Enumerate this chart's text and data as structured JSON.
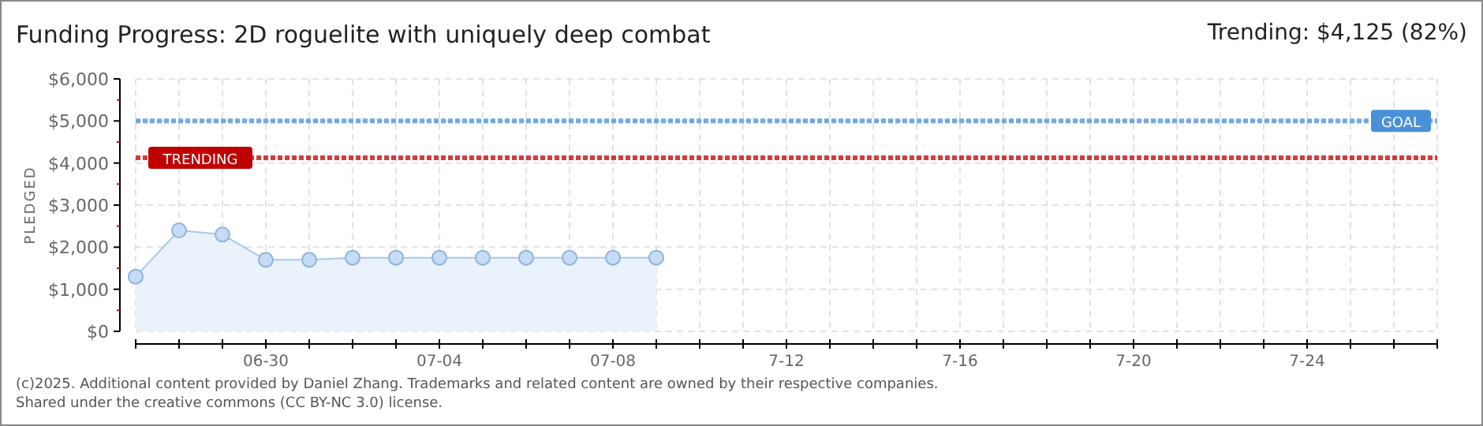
{
  "chart_data": {
    "type": "area",
    "title": "Funding Progress: 2D roguelite with uniquely deep combat",
    "subtitle": "Trending:  $4,125 (82%)",
    "ylabel": "PLEDGED",
    "x": [
      "--06-27",
      "--06-28",
      "--06-29",
      "--06-30",
      "--07-01",
      "--07-02",
      "--07-03",
      "--07-04",
      "--07-05",
      "--07-06",
      "--07-07",
      "--07-08",
      "--07-09"
    ],
    "series": [
      {
        "color": "#a8c8ec",
        "values": [
          1300,
          2400,
          2300,
          1700,
          1700,
          1750,
          1750,
          1750,
          1750,
          1750,
          1750,
          1750,
          1750
        ]
      }
    ],
    "marker": "circle",
    "grid": true,
    "xlim": [
      "--06-27",
      "--07-27"
    ],
    "xticks": [
      {
        "value": "--06-27",
        "label": null
      },
      {
        "value": "--06-28",
        "label": null
      },
      {
        "value": "--06-29",
        "label": null
      },
      {
        "value": "--06-30",
        "label": "06-30"
      },
      {
        "value": "--07-01",
        "label": null
      },
      {
        "value": "--07-02",
        "label": null
      },
      {
        "value": "--07-03",
        "label": null
      },
      {
        "value": "--07-04",
        "label": "07-04"
      },
      {
        "value": "--07-05",
        "label": null
      },
      {
        "value": "--07-06",
        "label": null
      },
      {
        "value": "--07-07",
        "label": null
      },
      {
        "value": "--07-08",
        "label": "07-08"
      },
      {
        "value": "--07-09",
        "label": null
      },
      {
        "value": "--07-10",
        "label": null
      },
      {
        "value": "--07-11",
        "label": null
      },
      {
        "value": "--07-12",
        "label": "7-12"
      },
      {
        "value": "--07-13",
        "label": null
      },
      {
        "value": "--07-14",
        "label": null
      },
      {
        "value": "--07-15",
        "label": null
      },
      {
        "value": "--07-16",
        "label": "7-16"
      },
      {
        "value": "--07-17",
        "label": null
      },
      {
        "value": "--07-18",
        "label": null
      },
      {
        "value": "--07-19",
        "label": null
      },
      {
        "value": "--07-20",
        "label": "7-20"
      },
      {
        "value": "--07-21",
        "label": null
      },
      {
        "value": "--07-22",
        "label": null
      },
      {
        "value": "--07-23",
        "label": null
      },
      {
        "value": "--07-24",
        "label": "7-24"
      },
      {
        "value": "--07-25",
        "label": null
      },
      {
        "value": "--07-26",
        "label": null
      },
      {
        "value": "--07-27",
        "label": null
      }
    ],
    "ylim": [
      0,
      6000
    ],
    "yticks": [
      {
        "value": 0,
        "label": "$0"
      },
      {
        "value": 500,
        "label": null
      },
      {
        "value": 1000,
        "label": "$1,000"
      },
      {
        "value": 1500,
        "label": null
      },
      {
        "value": 2000,
        "label": "$2,000"
      },
      {
        "value": 2500,
        "label": null
      },
      {
        "value": 3000,
        "label": "$3,000"
      },
      {
        "value": 3500,
        "label": null
      },
      {
        "value": 4000,
        "label": "$4,000"
      },
      {
        "value": 4500,
        "label": null
      },
      {
        "value": 5000,
        "label": "$5,000"
      },
      {
        "value": 5500,
        "label": null
      },
      {
        "value": 6000,
        "label": "$6,000"
      }
    ],
    "ref_lines": [
      {
        "axis": "y",
        "value": 5000,
        "label": "GOAL",
        "color": "#4a90d9",
        "line_style": "dotted"
      },
      {
        "axis": "y",
        "value": 4125,
        "label": "TRENDING",
        "color": "#c00000",
        "line_style": "dotted"
      }
    ],
    "annotations": [
      "(c)2025. Additional content provided by Daniel Zhang. Trademarks and related content are owned by their respective companies.",
      "Shared under the creative commons (CC BY-NC 3.0) license."
    ]
  }
}
